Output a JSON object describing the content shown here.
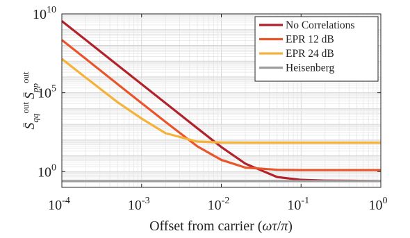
{
  "chart_data": {
    "type": "line",
    "xscale": "log",
    "yscale": "log",
    "xlim": [
      0.0001,
      1
    ],
    "ylim": [
      0.1,
      10000000000
    ],
    "grid": true,
    "legend_position": "top-right",
    "xlabel": "Offset from carrier (ωτ/π)",
    "ylabel": "S̄qq^out S̄pp^out",
    "x_ticks": [
      {
        "base": "10",
        "exp": "-4",
        "value": 0.0001
      },
      {
        "base": "10",
        "exp": "-3",
        "value": 0.001
      },
      {
        "base": "10",
        "exp": "-2",
        "value": 0.01
      },
      {
        "base": "10",
        "exp": "-1",
        "value": 0.1
      },
      {
        "base": "10",
        "exp": "0",
        "value": 1
      }
    ],
    "y_ticks": [
      {
        "base": "10",
        "exp": "0",
        "value": 1
      },
      {
        "base": "10",
        "exp": "5",
        "value": 100000
      },
      {
        "base": "10",
        "exp": "10",
        "value": 10000000000
      }
    ],
    "series": [
      {
        "name": "No Correlations",
        "color": "#b2222b",
        "x": [
          0.0001,
          0.0002,
          0.0005,
          0.001,
          0.002,
          0.005,
          0.01,
          0.02,
          0.05,
          0.1,
          0.2,
          0.5,
          1
        ],
        "y": [
          3500000000,
          220000000,
          5600000,
          350000,
          22000,
          560,
          36,
          3.2,
          0.45,
          0.3,
          0.27,
          0.26,
          0.25
        ]
      },
      {
        "name": "EPR 12 dB",
        "color": "#e8552a",
        "x": [
          0.0001,
          0.0002,
          0.0005,
          0.001,
          0.002,
          0.005,
          0.01,
          0.02,
          0.05,
          0.1,
          0.2,
          0.5,
          1
        ],
        "y": [
          220000000,
          14000000,
          350000,
          22000,
          1400,
          40,
          5.5,
          1.8,
          1.3,
          1.25,
          1.25,
          1.25,
          1.25
        ]
      },
      {
        "name": "EPR 24 dB",
        "color": "#f5b23a",
        "x": [
          0.0001,
          0.0002,
          0.0005,
          0.001,
          0.002,
          0.005,
          0.01,
          0.02,
          0.05,
          0.1,
          0.2,
          0.5,
          1
        ],
        "y": [
          14000000,
          900000,
          25000,
          2300,
          270,
          80,
          70,
          68,
          68,
          68,
          68,
          68,
          68
        ]
      },
      {
        "name": "Heisenberg",
        "color": "#9e9e9e",
        "x": [
          0.0001,
          1
        ],
        "y": [
          0.25,
          0.25
        ]
      }
    ]
  }
}
